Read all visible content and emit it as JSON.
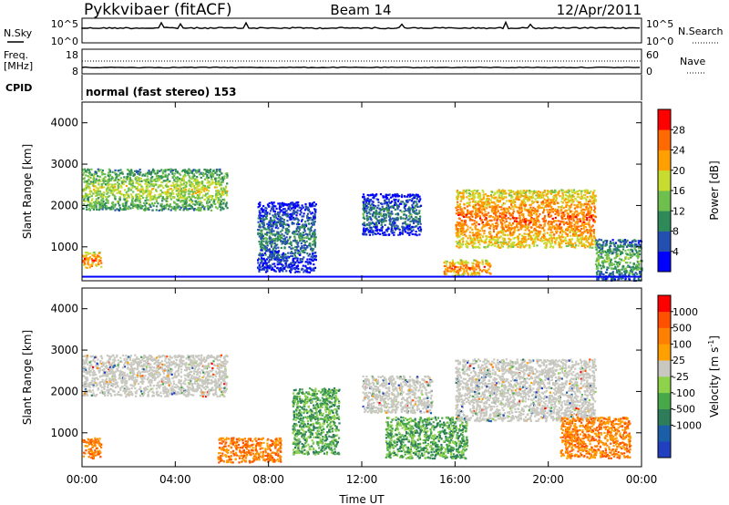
{
  "header": {
    "title": "Pykkvibaer (fitACF)",
    "beam": "Beam 14",
    "date": "12/Apr/2011"
  },
  "noise_panel": {
    "left_label": "N.Sky",
    "left_ticks": [
      "10^5",
      "10^0"
    ],
    "right_ticks": [
      "10^5",
      "10^0"
    ],
    "right_label": "N.Search"
  },
  "freq_panel": {
    "left_label_1": "Freq.",
    "left_label_2": "[MHz]",
    "left_ticks": [
      "18",
      "8"
    ],
    "right_ticks": [
      "60",
      "0"
    ],
    "right_label": "Nave"
  },
  "cpid_panel": {
    "label": "CPID",
    "text": "normal (fast stereo) 153"
  },
  "chart_data": [
    {
      "type": "heatmap",
      "name": "power",
      "ylabel": "Slant Range [km]",
      "yticks": [
        "4000",
        "3000",
        "2000",
        "1000"
      ],
      "ylim": [
        180,
        4500
      ],
      "xlim": [
        0,
        24
      ],
      "colorbar": {
        "label": "Power [dB]",
        "ticks": [
          "28",
          "24",
          "20",
          "16",
          "12",
          "8",
          "4"
        ],
        "colors": [
          "#0000ff",
          "#244fb0",
          "#2f8a5a",
          "#6fbf4f",
          "#c8dc30",
          "#ffa000",
          "#ff6a00",
          "#ff0000"
        ]
      },
      "regions": [
        {
          "t": [
            0.0,
            6.2
          ],
          "r": [
            1900,
            2900
          ],
          "level": "mid-high"
        },
        {
          "t": [
            0.0,
            0.8
          ],
          "r": [
            500,
            900
          ],
          "level": "high"
        },
        {
          "t": [
            7.5,
            10.0
          ],
          "r": [
            400,
            2100
          ],
          "level": "low"
        },
        {
          "t": [
            12.0,
            14.5
          ],
          "r": [
            1300,
            2300
          ],
          "level": "low"
        },
        {
          "t": [
            15.5,
            17.5
          ],
          "r": [
            300,
            700
          ],
          "level": "high"
        },
        {
          "t": [
            16.0,
            22.0
          ],
          "r": [
            1000,
            2400
          ],
          "level": "high"
        },
        {
          "t": [
            22.0,
            24.0
          ],
          "r": [
            200,
            1200
          ],
          "level": "mid"
        }
      ]
    },
    {
      "type": "heatmap",
      "name": "velocity",
      "ylabel": "Slant Range [km]",
      "xlabel": "Time UT",
      "yticks": [
        "4000",
        "3000",
        "2000",
        "1000"
      ],
      "ylim": [
        180,
        4500
      ],
      "xlim": [
        0,
        24
      ],
      "xticks": [
        "00:00",
        "04:00",
        "08:00",
        "12:00",
        "16:00",
        "20:00",
        "00:00"
      ],
      "colorbar": {
        "label": "Velocity [m s",
        "label_sup": "-1",
        "label_end": "]",
        "ticks": [
          "1000",
          "500",
          "100",
          "25",
          "-25",
          "-100",
          "-500",
          "-1000"
        ],
        "colors": [
          "#2040c0",
          "#1a5fa8",
          "#2e7d5a",
          "#47a84a",
          "#8ed14a",
          "#c8c8c0",
          "#ffa000",
          "#ff8000",
          "#ff5000",
          "#ff0000"
        ]
      },
      "regions": [
        {
          "t": [
            0.0,
            6.2
          ],
          "r": [
            1900,
            2900
          ],
          "kind": "ground"
        },
        {
          "t": [
            0.0,
            0.8
          ],
          "r": [
            400,
            900
          ],
          "kind": "toward"
        },
        {
          "t": [
            5.8,
            8.5
          ],
          "r": [
            300,
            900
          ],
          "kind": "toward"
        },
        {
          "t": [
            9.0,
            11.0
          ],
          "r": [
            500,
            2100
          ],
          "kind": "away"
        },
        {
          "t": [
            12.0,
            15.0
          ],
          "r": [
            1500,
            2400
          ],
          "kind": "ground"
        },
        {
          "t": [
            13.0,
            16.5
          ],
          "r": [
            400,
            1400
          ],
          "kind": "away"
        },
        {
          "t": [
            16.0,
            22.0
          ],
          "r": [
            1300,
            2800
          ],
          "kind": "ground"
        },
        {
          "t": [
            20.5,
            23.5
          ],
          "r": [
            400,
            1400
          ],
          "kind": "toward"
        }
      ]
    }
  ]
}
